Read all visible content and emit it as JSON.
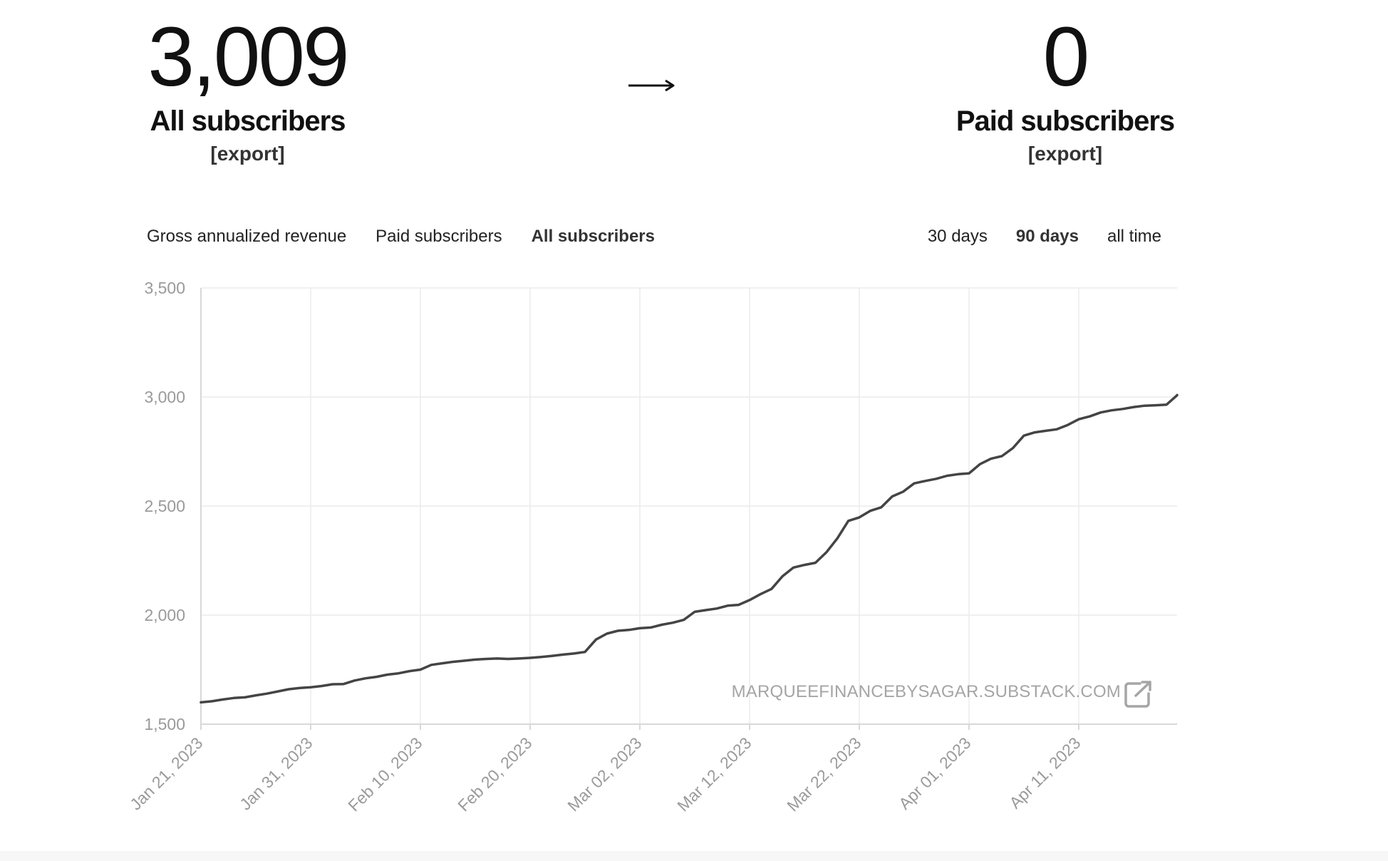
{
  "stats": {
    "all": {
      "value": "3,009",
      "label": "All subscribers",
      "export": "[export]"
    },
    "arrow": "⟶",
    "paid": {
      "value": "0",
      "label": "Paid subscribers",
      "export": "[export]"
    }
  },
  "metric_tabs": [
    {
      "label": "Gross annualized revenue",
      "active": false
    },
    {
      "label": "Paid subscribers",
      "active": false
    },
    {
      "label": "All subscribers",
      "active": true
    }
  ],
  "range_tabs": [
    {
      "label": "30 days",
      "active": false
    },
    {
      "label": "90 days",
      "active": true
    },
    {
      "label": "all time",
      "active": false
    }
  ],
  "watermark": "MARQUEEFINANCEBYSAGAR.SUBSTACK.COM",
  "icons": {
    "watermark_link": "external-link-icon"
  },
  "colors": {
    "line": "#444444",
    "grid": "#ececec",
    "axis_text": "#9a9a9a"
  },
  "chart_data": {
    "type": "line",
    "title": "",
    "xlabel": "",
    "ylabel": "",
    "x_ticks": [
      "Jan 21, 2023",
      "Jan 31, 2023",
      "Feb 10, 2023",
      "Feb 20, 2023",
      "Mar 02, 2023",
      "Mar 12, 2023",
      "Mar 22, 2023",
      "Apr 01, 2023",
      "Apr 11, 2023"
    ],
    "y_ticks": [
      1500,
      2000,
      2500,
      3000,
      3500
    ],
    "ylim": [
      1500,
      3500
    ],
    "xlim": [
      "2023-01-21",
      "2023-04-19"
    ],
    "grid": true,
    "series": [
      {
        "points": [
          [
            "2023-01-21",
            1600
          ],
          [
            "2023-01-22",
            1605
          ],
          [
            "2023-01-23",
            1613
          ],
          [
            "2023-01-24",
            1620
          ],
          [
            "2023-01-25",
            1623
          ],
          [
            "2023-01-26",
            1632
          ],
          [
            "2023-01-27",
            1640
          ],
          [
            "2023-01-28",
            1650
          ],
          [
            "2023-01-29",
            1660
          ],
          [
            "2023-01-30",
            1666
          ],
          [
            "2023-01-31",
            1669
          ],
          [
            "2023-02-01",
            1675
          ],
          [
            "2023-02-02",
            1683
          ],
          [
            "2023-02-03",
            1684
          ],
          [
            "2023-02-04",
            1700
          ],
          [
            "2023-02-05",
            1710
          ],
          [
            "2023-02-06",
            1717
          ],
          [
            "2023-02-07",
            1727
          ],
          [
            "2023-02-08",
            1733
          ],
          [
            "2023-02-09",
            1743
          ],
          [
            "2023-02-10",
            1750
          ],
          [
            "2023-02-11",
            1772
          ],
          [
            "2023-02-12",
            1779
          ],
          [
            "2023-02-13",
            1786
          ],
          [
            "2023-02-14",
            1791
          ],
          [
            "2023-02-15",
            1796
          ],
          [
            "2023-02-16",
            1799
          ],
          [
            "2023-02-17",
            1801
          ],
          [
            "2023-02-18",
            1799
          ],
          [
            "2023-02-19",
            1801
          ],
          [
            "2023-02-20",
            1804
          ],
          [
            "2023-02-21",
            1808
          ],
          [
            "2023-02-22",
            1813
          ],
          [
            "2023-02-23",
            1819
          ],
          [
            "2023-02-24",
            1824
          ],
          [
            "2023-02-25",
            1831
          ],
          [
            "2023-02-26",
            1888
          ],
          [
            "2023-02-27",
            1915
          ],
          [
            "2023-02-28",
            1928
          ],
          [
            "2023-03-01",
            1932
          ],
          [
            "2023-03-02",
            1940
          ],
          [
            "2023-03-03",
            1943
          ],
          [
            "2023-03-04",
            1956
          ],
          [
            "2023-03-05",
            1965
          ],
          [
            "2023-03-06",
            1978
          ],
          [
            "2023-03-07",
            2015
          ],
          [
            "2023-03-08",
            2023
          ],
          [
            "2023-03-09",
            2030
          ],
          [
            "2023-03-10",
            2043
          ],
          [
            "2023-03-11",
            2047
          ],
          [
            "2023-03-12",
            2069
          ],
          [
            "2023-03-13",
            2096
          ],
          [
            "2023-03-14",
            2120
          ],
          [
            "2023-03-15",
            2178
          ],
          [
            "2023-03-16",
            2218
          ],
          [
            "2023-03-17",
            2230
          ],
          [
            "2023-03-18",
            2240
          ],
          [
            "2023-03-19",
            2288
          ],
          [
            "2023-03-20",
            2352
          ],
          [
            "2023-03-21",
            2432
          ],
          [
            "2023-03-22",
            2448
          ],
          [
            "2023-03-23",
            2478
          ],
          [
            "2023-03-24",
            2494
          ],
          [
            "2023-03-25",
            2544
          ],
          [
            "2023-03-26",
            2566
          ],
          [
            "2023-03-27",
            2604
          ],
          [
            "2023-03-28",
            2615
          ],
          [
            "2023-03-29",
            2625
          ],
          [
            "2023-03-30",
            2639
          ],
          [
            "2023-03-31",
            2646
          ],
          [
            "2023-04-01",
            2650
          ],
          [
            "2023-04-02",
            2692
          ],
          [
            "2023-04-03",
            2717
          ],
          [
            "2023-04-04",
            2729
          ],
          [
            "2023-04-05",
            2766
          ],
          [
            "2023-04-06",
            2823
          ],
          [
            "2023-04-07",
            2838
          ],
          [
            "2023-04-08",
            2845
          ],
          [
            "2023-04-09",
            2852
          ],
          [
            "2023-04-10",
            2872
          ],
          [
            "2023-04-11",
            2898
          ],
          [
            "2023-04-12",
            2911
          ],
          [
            "2023-04-13",
            2929
          ],
          [
            "2023-04-14",
            2939
          ],
          [
            "2023-04-15",
            2945
          ],
          [
            "2023-04-16",
            2954
          ],
          [
            "2023-04-17",
            2960
          ],
          [
            "2023-04-18",
            2962
          ],
          [
            "2023-04-19",
            2965
          ],
          [
            "2023-04-20",
            3008
          ],
          [
            "2023-04-21",
            3009
          ]
        ]
      }
    ]
  }
}
